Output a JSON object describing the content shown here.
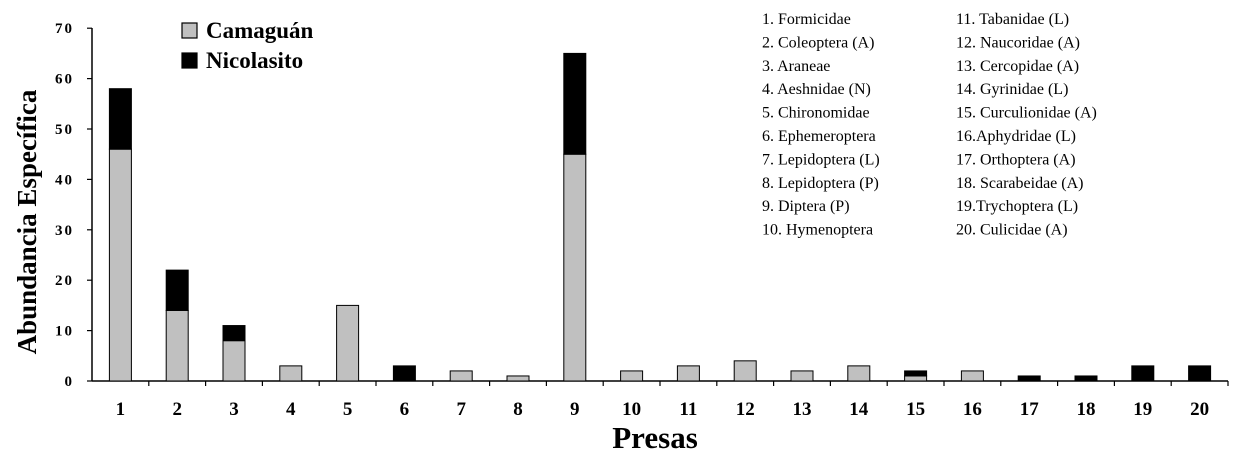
{
  "chart_data": {
    "type": "bar",
    "stacked": true,
    "categories": [
      "1",
      "2",
      "3",
      "4",
      "5",
      "6",
      "7",
      "8",
      "9",
      "10",
      "11",
      "12",
      "13",
      "14",
      "15",
      "16",
      "17",
      "18",
      "19",
      "20"
    ],
    "series": [
      {
        "name": "Camaguán",
        "color": "#c0c0c0",
        "values": [
          46,
          14,
          8,
          3,
          15,
          0,
          2,
          1,
          45,
          2,
          3,
          4,
          2,
          3,
          1,
          2,
          0,
          0,
          0,
          0
        ]
      },
      {
        "name": "Nicolasito",
        "color": "#000000",
        "values": [
          12,
          8,
          3,
          0,
          0,
          3,
          0,
          0,
          20,
          0,
          0,
          0,
          0,
          0,
          1,
          0,
          1,
          1,
          3,
          3
        ]
      }
    ],
    "xlabel": "Presas",
    "ylabel": "Abundancia Específica",
    "ylim": [
      0,
      70
    ],
    "yticks": [
      "0",
      "10",
      "20",
      "30",
      "40",
      "50",
      "60",
      "70"
    ],
    "grid": false,
    "legend": "top-left",
    "key": [
      "1. Formicidae",
      "2. Coleoptera (A)",
      "3. Araneae",
      "4. Aeshnidae (N)",
      "5. Chironomidae",
      "6. Ephemeroptera",
      "7. Lepidoptera (L)",
      "8. Lepidoptera (P)",
      "9. Diptera (P)",
      "10. Hymenoptera",
      "11. Tabanidae (L)",
      "12. Naucoridae (A)",
      "13. Cercopidae (A)",
      "14. Gyrinidae (L)",
      "15. Curculionidae (A)",
      "16.Aphydridae (L)",
      "17. Orthoptera (A)",
      "18. Scarabeidae (A)",
      "19.Trychoptera (L)",
      "20. Culicidae (A)"
    ]
  }
}
